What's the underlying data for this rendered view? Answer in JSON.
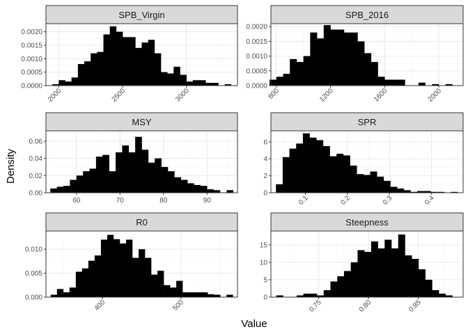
{
  "ylabel": "Density",
  "xlabel": "Value",
  "colors": {
    "bar": "#000000",
    "strip": "#d9d9d9",
    "grid_major": "#ebebeb",
    "grid_minor": "#f5f5f5",
    "border": "#333333"
  },
  "chart_data": [
    {
      "type": "bar",
      "title": "SPB_Virgin",
      "xlim": [
        1900,
        3400
      ],
      "ylim": [
        0,
        0.0023
      ],
      "binwidth": 50,
      "xticks": [
        2000,
        2500,
        3000
      ],
      "xtick_labels": [
        "2000",
        "2500",
        "3000"
      ],
      "xtick_rotate": true,
      "yticks": [
        0,
        0.0005,
        0.001,
        0.0015,
        0.002
      ],
      "ytick_labels": [
        "0.0000",
        "0.0005",
        "0.0010",
        "0.0015",
        "0.0020"
      ],
      "x": [
        1975,
        2025,
        2075,
        2125,
        2175,
        2225,
        2275,
        2325,
        2375,
        2425,
        2475,
        2525,
        2575,
        2625,
        2675,
        2725,
        2775,
        2825,
        2875,
        2925,
        2975,
        3025,
        3075,
        3125,
        3175,
        3225,
        3275,
        3325
      ],
      "values": [
        5e-05,
        0.0002,
        0.00015,
        0.0003,
        0.0008,
        0.0009,
        0.0012,
        0.00125,
        0.0019,
        0.0022,
        0.002,
        0.0018,
        0.0018,
        0.0014,
        0.0016,
        0.0017,
        0.0012,
        0.0005,
        0.00045,
        0.0007,
        0.0004,
        0.00015,
        0.0002,
        0.0002,
        0.0001,
        0.0001,
        0,
        5e-05
      ]
    },
    {
      "type": "bar",
      "title": "SPB_2016",
      "xlim": [
        760,
        2180
      ],
      "ylim": [
        0,
        0.0021
      ],
      "binwidth": 50,
      "xticks": [
        800,
        1200,
        1600,
        2000
      ],
      "xtick_labels": [
        "800",
        "1200",
        "1600",
        "2000"
      ],
      "xtick_rotate": true,
      "yticks": [
        0,
        0.0005,
        0.001,
        0.0015,
        0.002
      ],
      "ytick_labels": [
        "0.0000",
        "0.0005",
        "0.0010",
        "0.0015",
        "0.0020"
      ],
      "x": [
        775,
        825,
        875,
        925,
        975,
        1025,
        1075,
        1125,
        1175,
        1225,
        1275,
        1325,
        1375,
        1425,
        1475,
        1525,
        1575,
        1625,
        1675,
        1725,
        1775,
        1825,
        1875,
        1925,
        1975,
        2025,
        2075,
        2125
      ],
      "values": [
        0.0002,
        0.0003,
        0.0004,
        0.0009,
        0.0008,
        0.001,
        0.0018,
        0.0016,
        0.00205,
        0.0019,
        0.0019,
        0.0018,
        0.0018,
        0.0015,
        0.0011,
        0.0008,
        0.0003,
        0.0002,
        0.0002,
        0.0002,
        0,
        0,
        0.0001,
        0,
        5e-05,
        0,
        5e-05,
        0
      ]
    },
    {
      "type": "bar",
      "title": "MSY",
      "xlim": [
        53,
        97
      ],
      "ylim": [
        0,
        0.072
      ],
      "binwidth": 1.5,
      "xticks": [
        60,
        70,
        80,
        90
      ],
      "xtick_labels": [
        "60",
        "70",
        "80",
        "90"
      ],
      "xtick_rotate": false,
      "yticks": [
        0,
        0.02,
        0.04,
        0.06
      ],
      "ytick_labels": [
        "0.00",
        "0.02",
        "0.04",
        "0.06"
      ],
      "x": [
        54.75,
        56.25,
        57.75,
        59.25,
        60.75,
        62.25,
        63.75,
        65.25,
        66.75,
        68.25,
        69.75,
        71.25,
        72.75,
        74.25,
        75.75,
        77.25,
        78.75,
        80.25,
        81.75,
        83.25,
        84.75,
        86.25,
        87.75,
        89.25,
        90.75,
        92.25,
        93.75,
        95.25
      ],
      "values": [
        0.005,
        0.007,
        0.008,
        0.015,
        0.02,
        0.025,
        0.028,
        0.042,
        0.044,
        0.025,
        0.047,
        0.055,
        0.047,
        0.065,
        0.05,
        0.035,
        0.04,
        0.03,
        0.025,
        0.018,
        0.015,
        0.011,
        0.009,
        0.008,
        0.004,
        0.003,
        0,
        0.003
      ]
    },
    {
      "type": "bar",
      "title": "SPR",
      "xlim": [
        0.018,
        0.475
      ],
      "ylim": [
        0,
        7.3
      ],
      "binwidth": 0.016,
      "xticks": [
        0.1,
        0.2,
        0.3,
        0.4
      ],
      "xtick_labels": [
        "0.1",
        "0.2",
        "0.3",
        "0.4"
      ],
      "xtick_rotate": true,
      "yticks": [
        0,
        2,
        4,
        6
      ],
      "ytick_labels": [
        "0",
        "2",
        "4",
        "6"
      ],
      "x": [
        0.038,
        0.054,
        0.07,
        0.086,
        0.102,
        0.118,
        0.134,
        0.15,
        0.166,
        0.182,
        0.198,
        0.214,
        0.23,
        0.246,
        0.262,
        0.278,
        0.294,
        0.31,
        0.326,
        0.342,
        0.358,
        0.374,
        0.39,
        0.406,
        0.422,
        0.438,
        0.454
      ],
      "values": [
        1,
        4.2,
        5.2,
        5.8,
        7,
        6.5,
        6.2,
        5.5,
        4.3,
        4.6,
        4.4,
        3.2,
        2.2,
        2.1,
        2.5,
        1.9,
        1.4,
        0.7,
        0.5,
        0.3,
        0.1,
        0.2,
        0.2,
        0.1,
        0.1,
        0,
        0.1
      ]
    },
    {
      "type": "bar",
      "title": "R0",
      "xlim": [
        328,
        572
      ],
      "ylim": [
        0,
        0.0138
      ],
      "binwidth": 8,
      "xticks": [
        400,
        500
      ],
      "xtick_labels": [
        "400",
        "500"
      ],
      "xtick_rotate": true,
      "yticks": [
        0,
        0.005,
        0.01
      ],
      "ytick_labels": [
        "0.000",
        "0.005",
        "0.010"
      ],
      "x": [
        338,
        346,
        354,
        362,
        370,
        378,
        386,
        394,
        402,
        410,
        418,
        426,
        434,
        442,
        450,
        458,
        466,
        474,
        482,
        490,
        498,
        506,
        514,
        522,
        530,
        538,
        546,
        554,
        562
      ],
      "values": [
        0.0005,
        0.0017,
        0.001,
        0.002,
        0.0053,
        0.006,
        0.0076,
        0.0087,
        0.012,
        0.013,
        0.0121,
        0.0112,
        0.012,
        0.0082,
        0.01,
        0.0082,
        0.0047,
        0.0055,
        0.0025,
        0.002,
        0.0034,
        0.001,
        0.001,
        0.001,
        0.001,
        0.0006,
        0.0005,
        0,
        0.0005
      ]
    },
    {
      "type": "bar",
      "title": "Steepness",
      "xlim": [
        0.702,
        0.895
      ],
      "ylim": [
        0,
        19
      ],
      "binwidth": 0.0068,
      "xticks": [
        0.75,
        0.8,
        0.85
      ],
      "xtick_labels": [
        "0.75",
        "0.80",
        "0.85"
      ],
      "xtick_rotate": true,
      "yticks": [
        0,
        5,
        10,
        15
      ],
      "ytick_labels": [
        "0",
        "5",
        "10",
        "15"
      ],
      "x": [
        0.7108,
        0.7176,
        0.7244,
        0.7312,
        0.738,
        0.7448,
        0.7516,
        0.7584,
        0.7652,
        0.772,
        0.7788,
        0.7856,
        0.7924,
        0.7992,
        0.806,
        0.8128,
        0.8196,
        0.8264,
        0.8332,
        0.84,
        0.8468,
        0.8536,
        0.8604,
        0.8672,
        0.874,
        0.8808
      ],
      "values": [
        0.5,
        0,
        0,
        0.5,
        1,
        1,
        0.5,
        2,
        4.5,
        6,
        7.5,
        10,
        13.5,
        13,
        16,
        14,
        16.5,
        14,
        18,
        12,
        11,
        8,
        5,
        2,
        1,
        0.5
      ]
    }
  ]
}
